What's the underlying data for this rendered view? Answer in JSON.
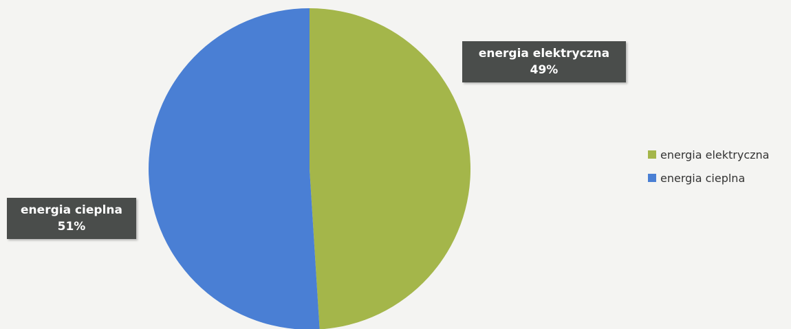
{
  "chart_data": {
    "type": "pie",
    "title": "",
    "slices": [
      {
        "name": "energia elektryczna",
        "value": 49,
        "label": "49%",
        "color": "#a4b64a"
      },
      {
        "name": "energia cieplna",
        "value": 51,
        "label": "51%",
        "color": "#4a7fd4"
      }
    ],
    "legend": {
      "position": "right",
      "items": [
        {
          "label": "energia elektryczna",
          "color": "#a4b64a"
        },
        {
          "label": "energia cieplna",
          "color": "#4a7fd4"
        }
      ]
    }
  }
}
